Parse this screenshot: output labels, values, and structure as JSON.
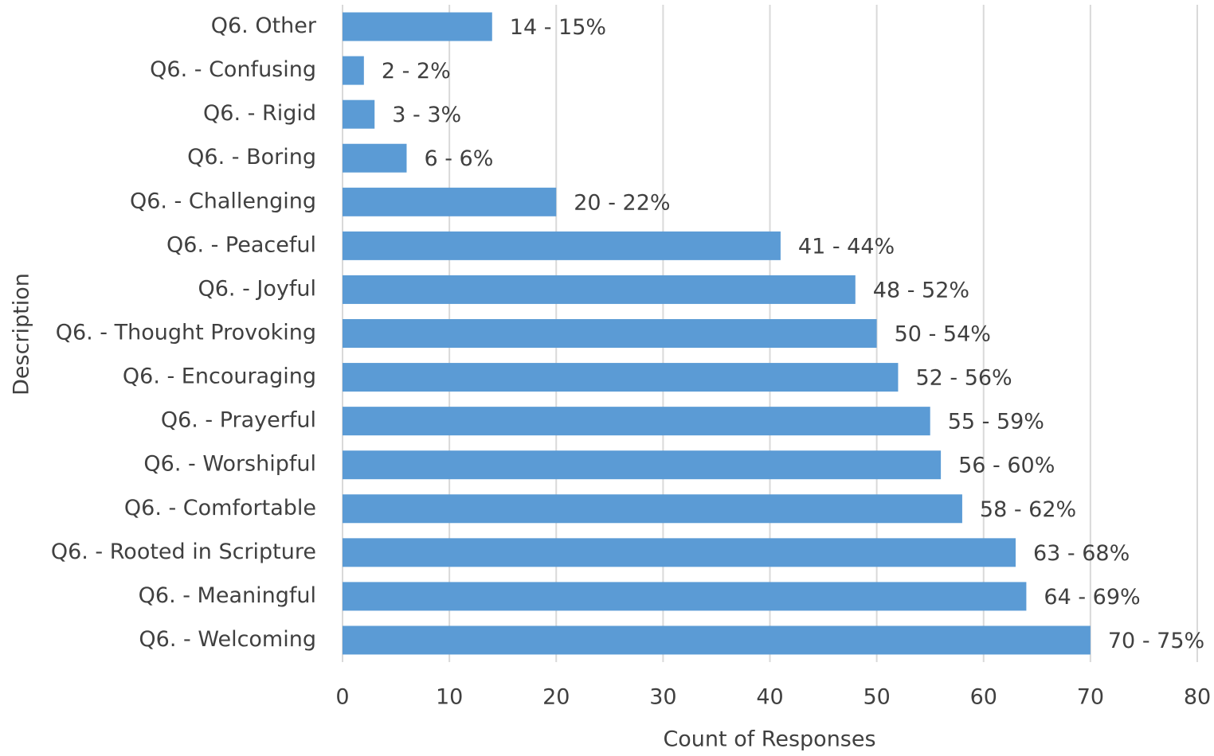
{
  "chart_data": {
    "type": "bar",
    "orientation": "horizontal",
    "x_label": "Count of Responses",
    "y_label": "Description",
    "categories": [
      "Q6. Other",
      "Q6. - Confusing",
      "Q6. - Rigid",
      "Q6. - Boring",
      "Q6. - Challenging",
      "Q6. - Peaceful",
      "Q6. - Joyful",
      "Q6. - Thought Provoking",
      "Q6. - Encouraging",
      "Q6. - Prayerful",
      "Q6. - Worshipful",
      "Q6. - Comfortable",
      "Q6. - Rooted in Scripture",
      "Q6. - Meaningful",
      "Q6. - Welcoming"
    ],
    "values": [
      14,
      2,
      3,
      6,
      20,
      41,
      48,
      50,
      52,
      55,
      56,
      58,
      63,
      64,
      70
    ],
    "value_labels": [
      "14 - 15%",
      "2 - 2%",
      "3 - 3%",
      "6 - 6%",
      "20 - 22%",
      "41 - 44%",
      "48 - 52%",
      "50 - 54%",
      "52 - 56%",
      "55 - 59%",
      "56 - 60%",
      "58 - 62%",
      "63 - 68%",
      "64 - 69%",
      "70 - 75%"
    ],
    "color": "#5b9bd5",
    "xlim": [
      0,
      80
    ],
    "xticks": [
      0,
      10,
      20,
      30,
      40,
      50,
      60,
      70,
      80
    ],
    "grid": true
  }
}
